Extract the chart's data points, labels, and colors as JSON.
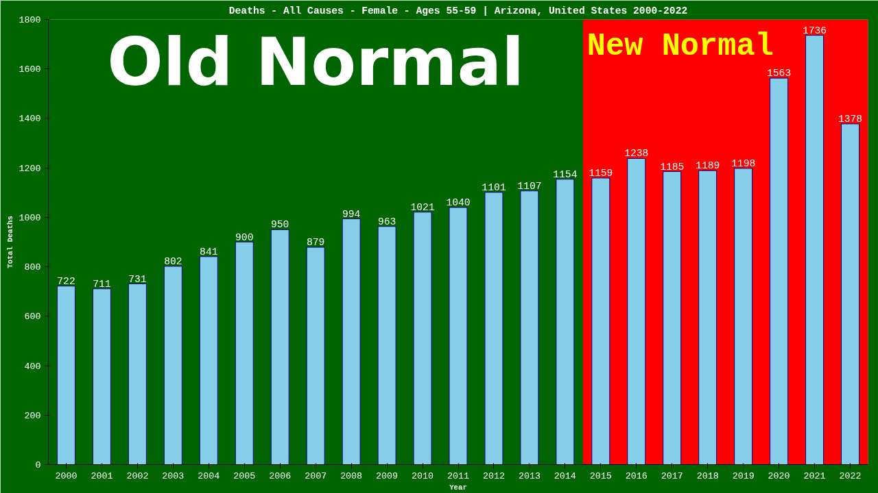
{
  "chart_data": {
    "type": "bar",
    "title": "Deaths - All Causes - Female - Ages 55-59 | Arizona, United States 2000-2022",
    "xlabel": "Year",
    "ylabel": "Total Deaths",
    "categories": [
      "2000",
      "2001",
      "2002",
      "2003",
      "2004",
      "2005",
      "2006",
      "2007",
      "2008",
      "2009",
      "2010",
      "2011",
      "2012",
      "2013",
      "2014",
      "2015",
      "2016",
      "2017",
      "2018",
      "2019",
      "2020",
      "2021",
      "2022"
    ],
    "values": [
      722,
      711,
      731,
      802,
      841,
      900,
      950,
      879,
      994,
      963,
      1021,
      1040,
      1101,
      1107,
      1154,
      1159,
      1238,
      1185,
      1189,
      1198,
      1563,
      1736,
      1378
    ],
    "color": "#87ceeb",
    "ylim": [
      0,
      1800
    ],
    "yticks": [
      0,
      200,
      400,
      600,
      800,
      1000,
      1200,
      1400,
      1600,
      1800
    ],
    "grid": false,
    "data_labels": true,
    "bands": [
      {
        "axis": "x",
        "from": "2000",
        "to": "2014",
        "label": "Old Normal",
        "color": "#006400"
      },
      {
        "axis": "x",
        "from": "2015",
        "to": "2022",
        "label": "New Normal",
        "color": "#ff0000"
      }
    ]
  }
}
